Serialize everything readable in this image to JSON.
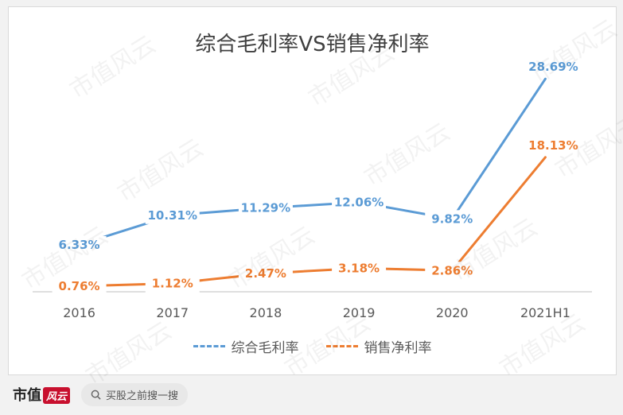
{
  "chart_data": {
    "type": "line",
    "title": "综合毛利率VS销售净利率",
    "categories": [
      "2016",
      "2017",
      "2018",
      "2019",
      "2020",
      "2021H1"
    ],
    "series": [
      {
        "name": "综合毛利率",
        "values": [
          6.33,
          10.31,
          11.29,
          12.06,
          9.82,
          28.69
        ],
        "labels": [
          "6.33%",
          "10.31%",
          "11.29%",
          "12.06%",
          "9.82%",
          "28.69%"
        ],
        "color": "#5b9bd5"
      },
      {
        "name": "销售净利率",
        "values": [
          0.76,
          1.12,
          2.47,
          3.18,
          2.86,
          18.13
        ],
        "labels": [
          "0.76%",
          "1.12%",
          "2.47%",
          "3.18%",
          "2.86%",
          "18.13%"
        ],
        "color": "#ed7d31"
      }
    ],
    "ylim": [
      0,
      30
    ],
    "grid": false,
    "legend": "bottom"
  },
  "watermark": "市值风云",
  "footer": {
    "brand": "市值",
    "brand_seal": "风云",
    "search_icon": "search-icon",
    "search_text": "买股之前搜一搜"
  }
}
